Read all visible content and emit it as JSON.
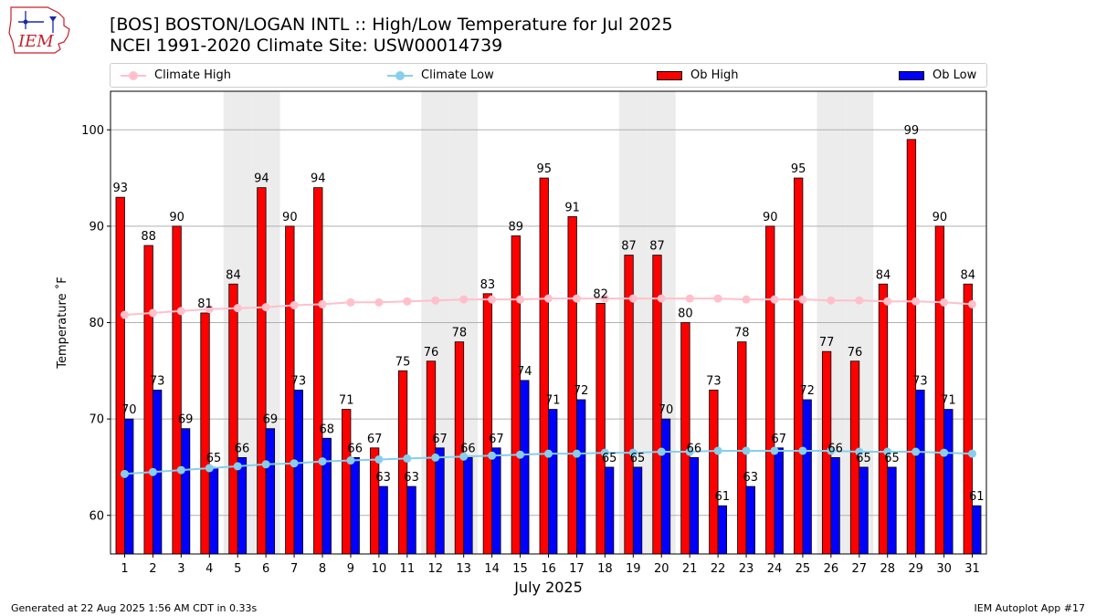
{
  "logo_text": "IEM",
  "title_line1": "[BOS] BOSTON/LOGAN INTL :: High/Low Temperature for Jul 2025",
  "title_line2": "NCEI 1991-2020 Climate Site: USW00014739",
  "footer_left": "Generated at 22 Aug 2025 1:56 AM CDT in 0.33s",
  "footer_right": "IEM Autoplot App #17",
  "legend": [
    {
      "label": "Climate High",
      "kind": "line",
      "color": "#ffc0cb"
    },
    {
      "label": "Climate Low",
      "kind": "line",
      "color": "#87ceeb"
    },
    {
      "label": "Ob High",
      "kind": "bar",
      "color": "#ff0000"
    },
    {
      "label": "Ob Low",
      "kind": "bar",
      "color": "#0000ff"
    }
  ],
  "chart_data": {
    "type": "bar",
    "title": "[BOS] BOSTON/LOGAN INTL :: High/Low Temperature for Jul 2025",
    "subtitle": "NCEI 1991-2020 Climate Site: USW00014739",
    "xlabel": "July 2025",
    "ylabel": "Temperature ˚F",
    "ylim": [
      56,
      104
    ],
    "yticks": [
      60,
      70,
      80,
      90,
      100
    ],
    "grid": "horizontal",
    "legend_position": "top",
    "categories": [
      "1",
      "2",
      "3",
      "4",
      "5",
      "6",
      "7",
      "8",
      "9",
      "10",
      "11",
      "12",
      "13",
      "14",
      "15",
      "16",
      "17",
      "18",
      "19",
      "20",
      "21",
      "22",
      "23",
      "24",
      "25",
      "26",
      "27",
      "28",
      "29",
      "30",
      "31"
    ],
    "weekend_shading_days": [
      5,
      6,
      12,
      13,
      19,
      20,
      26,
      27
    ],
    "series": [
      {
        "name": "Ob High",
        "type": "bar",
        "color": "#ff0000",
        "values": [
          93,
          88,
          90,
          81,
          84,
          94,
          90,
          94,
          71,
          67,
          75,
          76,
          78,
          83,
          89,
          95,
          91,
          82,
          87,
          87,
          80,
          73,
          78,
          90,
          95,
          77,
          76,
          84,
          99,
          90,
          84
        ]
      },
      {
        "name": "Ob Low",
        "type": "bar",
        "color": "#0000ff",
        "values": [
          70,
          73,
          69,
          65,
          66,
          69,
          73,
          68,
          66,
          63,
          63,
          67,
          66,
          67,
          74,
          71,
          72,
          65,
          65,
          70,
          66,
          61,
          63,
          67,
          72,
          66,
          65,
          65,
          73,
          71,
          61
        ]
      },
      {
        "name": "Climate High",
        "type": "line",
        "color": "#ffc0cb",
        "values": [
          80.8,
          81.0,
          81.2,
          81.4,
          81.5,
          81.6,
          81.8,
          81.9,
          82.1,
          82.1,
          82.2,
          82.3,
          82.4,
          82.4,
          82.4,
          82.5,
          82.5,
          82.5,
          82.5,
          82.5,
          82.5,
          82.5,
          82.4,
          82.4,
          82.4,
          82.3,
          82.3,
          82.2,
          82.2,
          82.1,
          81.9
        ]
      },
      {
        "name": "Climate Low",
        "type": "line",
        "color": "#87ceeb",
        "values": [
          64.3,
          64.5,
          64.7,
          64.9,
          65.1,
          65.3,
          65.4,
          65.6,
          65.7,
          65.8,
          65.9,
          66.0,
          66.1,
          66.2,
          66.3,
          66.4,
          66.4,
          66.5,
          66.5,
          66.6,
          66.6,
          66.7,
          66.7,
          66.7,
          66.7,
          66.7,
          66.6,
          66.6,
          66.6,
          66.5,
          66.4
        ]
      }
    ]
  }
}
